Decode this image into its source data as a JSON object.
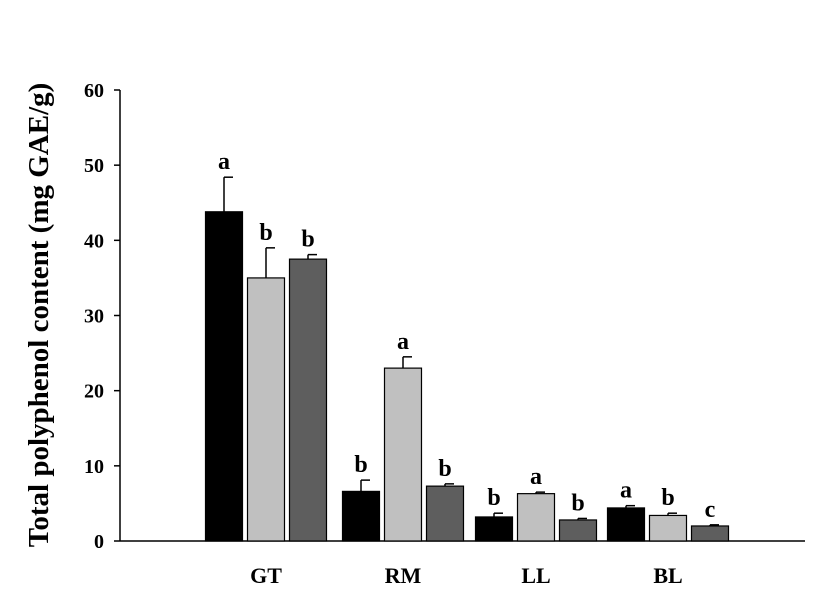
{
  "chart_data": {
    "type": "bar",
    "title": "",
    "xlabel": "",
    "ylabel": "Total polyphenol content (mg GAE/g)",
    "ylim": [
      0,
      60
    ],
    "yticks": [
      "0",
      "10",
      "20",
      "30",
      "40",
      "50",
      "60"
    ],
    "categories": [
      "GT",
      "RM",
      "LL",
      "BL"
    ],
    "grid": false,
    "legend": "none",
    "series": [
      {
        "color": "#000000",
        "values": [
          43.8,
          6.6,
          3.2,
          4.4
        ],
        "errors": [
          4.6,
          1.5,
          0.5,
          0.3
        ],
        "labels": [
          "a",
          "b",
          "b",
          "a"
        ]
      },
      {
        "color": "#c0c0c0",
        "values": [
          35.0,
          23.0,
          6.3,
          3.4
        ],
        "errors": [
          4.0,
          1.5,
          0.2,
          0.3
        ],
        "labels": [
          "b",
          "a",
          "a",
          "b"
        ]
      },
      {
        "color": "#5e5e5e",
        "values": [
          37.5,
          7.3,
          2.8,
          2.0
        ],
        "errors": [
          0.6,
          0.3,
          0.2,
          0.15
        ],
        "labels": [
          "b",
          "b",
          "b",
          "c"
        ]
      }
    ]
  }
}
